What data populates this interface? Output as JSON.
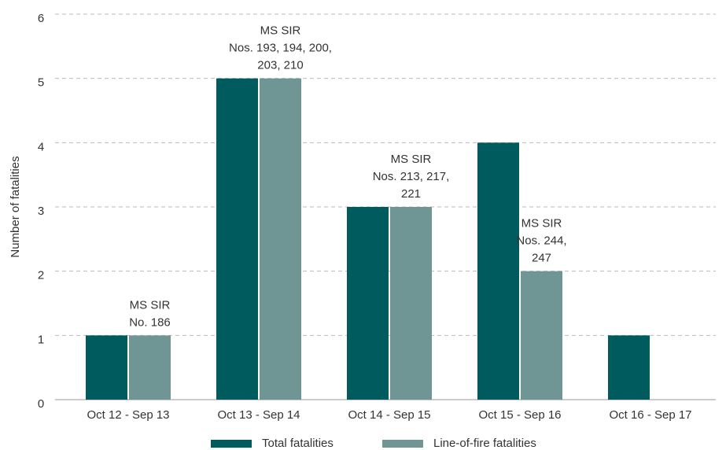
{
  "chart_data": {
    "type": "bar",
    "y_label": "Number of fatalities",
    "categories": [
      "Oct 12 - Sep 13",
      "Oct 13 - Sep 14",
      "Oct 14 - Sep 15",
      "Oct 15 - Sep 16",
      "Oct 16 - Sep 17"
    ],
    "series": [
      {
        "name": "Total fatalities",
        "color": "#005b5f",
        "values": [
          1,
          5,
          3,
          4,
          1
        ]
      },
      {
        "name": "Line-of-fire fatalities",
        "color": "#6f9595",
        "values": [
          1,
          5,
          3,
          2,
          0
        ]
      }
    ],
    "annotations": [
      [
        "MS SIR",
        "No. 186"
      ],
      [
        "MS SIR",
        "Nos. 193, 194, 200,",
        "203, 210"
      ],
      [
        "MS SIR",
        "Nos. 213, 217,",
        "221"
      ],
      [
        "MS SIR",
        "Nos. 244,",
        "247"
      ],
      null
    ],
    "ylim": [
      0,
      6
    ],
    "yticks": [
      0,
      1,
      2,
      3,
      4,
      5,
      6
    ],
    "grid": true,
    "legend": "bottom"
  }
}
